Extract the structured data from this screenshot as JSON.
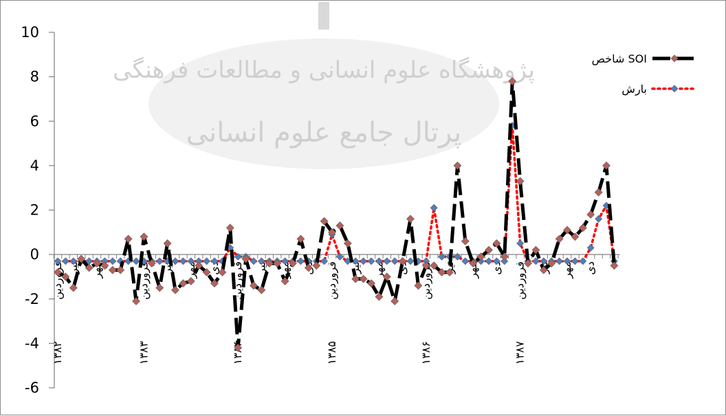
{
  "chart_data": {
    "type": "line",
    "title": "",
    "xlabel": "",
    "ylabel": "",
    "ylim": [
      -6,
      10
    ],
    "yticks": [
      -6,
      -4,
      -2,
      0,
      2,
      4,
      6,
      8,
      10
    ],
    "grid": false,
    "legend_position": "top-right",
    "x_ticks": [
      {
        "index": 0,
        "label": "فروردین"
      },
      {
        "index": 2,
        "label": "تیر"
      },
      {
        "index": 5,
        "label": "مهر"
      },
      {
        "index": 11,
        "label": "فروردین"
      },
      {
        "index": 14,
        "label": "تیر"
      },
      {
        "index": 17,
        "label": "مهر"
      },
      {
        "index": 20,
        "label": "دی"
      },
      {
        "index": 23,
        "label": "فروردین"
      },
      {
        "index": 26,
        "label": "تیر"
      },
      {
        "index": 29,
        "label": "مهر"
      },
      {
        "index": 32,
        "label": "دی"
      },
      {
        "index": 35,
        "label": "فروردین"
      },
      {
        "index": 38,
        "label": "تیر"
      },
      {
        "index": 41,
        "label": "مهر"
      },
      {
        "index": 44,
        "label": "دی"
      },
      {
        "index": 47,
        "label": "فروردین"
      },
      {
        "index": 50,
        "label": "تیر"
      },
      {
        "index": 53,
        "label": "مهر"
      },
      {
        "index": 56,
        "label": "دی"
      },
      {
        "index": 59,
        "label": "فروردین"
      },
      {
        "index": 62,
        "label": "تیر"
      },
      {
        "index": 65,
        "label": "مهر"
      },
      {
        "index": 68,
        "label": "دی"
      }
    ],
    "year_labels": [
      {
        "index": 0,
        "label": "۱۳۸۲"
      },
      {
        "index": 11,
        "label": "۱۳۸۳"
      },
      {
        "index": 23,
        "label": "۱۳۸۴"
      },
      {
        "index": 35,
        "label": "۱۳۸۵"
      },
      {
        "index": 47,
        "label": "۱۳۸۶"
      },
      {
        "index": 59,
        "label": "۱۳۸۷"
      }
    ],
    "series": [
      {
        "name": "شاخص SOI",
        "color": "#000000",
        "marker_color": "#b5615a",
        "values": [
          -0.8,
          -1.0,
          -1.5,
          -0.2,
          -0.6,
          -0.4,
          -0.5,
          -0.7,
          -0.7,
          0.7,
          -2.1,
          0.8,
          -0.4,
          -1.5,
          0.5,
          -1.6,
          -1.3,
          -1.2,
          -0.5,
          -0.8,
          -1.3,
          -0.8,
          1.2,
          -4.2,
          -0.2,
          -1.4,
          -1.6,
          -0.4,
          -0.4,
          -1.2,
          -0.4,
          0.7,
          -0.6,
          -0.5,
          1.5,
          1.0,
          1.3,
          0.5,
          -1.1,
          -1.1,
          -1.3,
          -1.9,
          -1.0,
          -2.1,
          -0.3,
          1.6,
          -1.4,
          -0.5,
          -0.5,
          -0.8,
          -0.8,
          4.0,
          0.6,
          -0.4,
          -0.1,
          0.2,
          0.5,
          -0.1,
          7.8,
          3.3,
          -0.4,
          0.2,
          -0.7,
          -0.4,
          0.7,
          1.1,
          0.8,
          1.2,
          1.8,
          2.8,
          4.0,
          -0.5
        ]
      },
      {
        "name": "بارش",
        "color": "#ff0000",
        "marker_color": "#4f7fbd",
        "values": [
          -0.3,
          -0.3,
          -0.3,
          -0.3,
          -0.3,
          -0.3,
          -0.3,
          -0.3,
          -0.3,
          -0.3,
          -0.3,
          -0.3,
          -0.3,
          -0.3,
          -0.3,
          -0.3,
          -0.3,
          -0.3,
          -0.3,
          -0.3,
          -0.3,
          -0.3,
          0.3,
          -0.1,
          -0.1,
          -0.3,
          -0.3,
          -0.3,
          -0.3,
          -0.3,
          -0.3,
          -0.3,
          -0.3,
          -0.3,
          -0.3,
          0.9,
          -0.1,
          -0.3,
          -0.3,
          -0.3,
          -0.3,
          -0.3,
          -0.3,
          -0.3,
          -0.3,
          -0.3,
          -0.3,
          -0.3,
          2.1,
          -0.1,
          -0.1,
          -0.1,
          -0.3,
          -0.3,
          -0.3,
          -0.3,
          -0.3,
          -0.3,
          5.8,
          0.5,
          -0.3,
          -0.3,
          -0.3,
          -0.3,
          -0.3,
          -0.3,
          -0.3,
          -0.3,
          0.3,
          1.6,
          2.2,
          -0.3
        ]
      }
    ]
  },
  "watermark": {
    "line1": "پژوهشگاه علوم انسانی و مطالعات فرهنگی",
    "line2": "پرتال جامع علوم انسانی"
  }
}
